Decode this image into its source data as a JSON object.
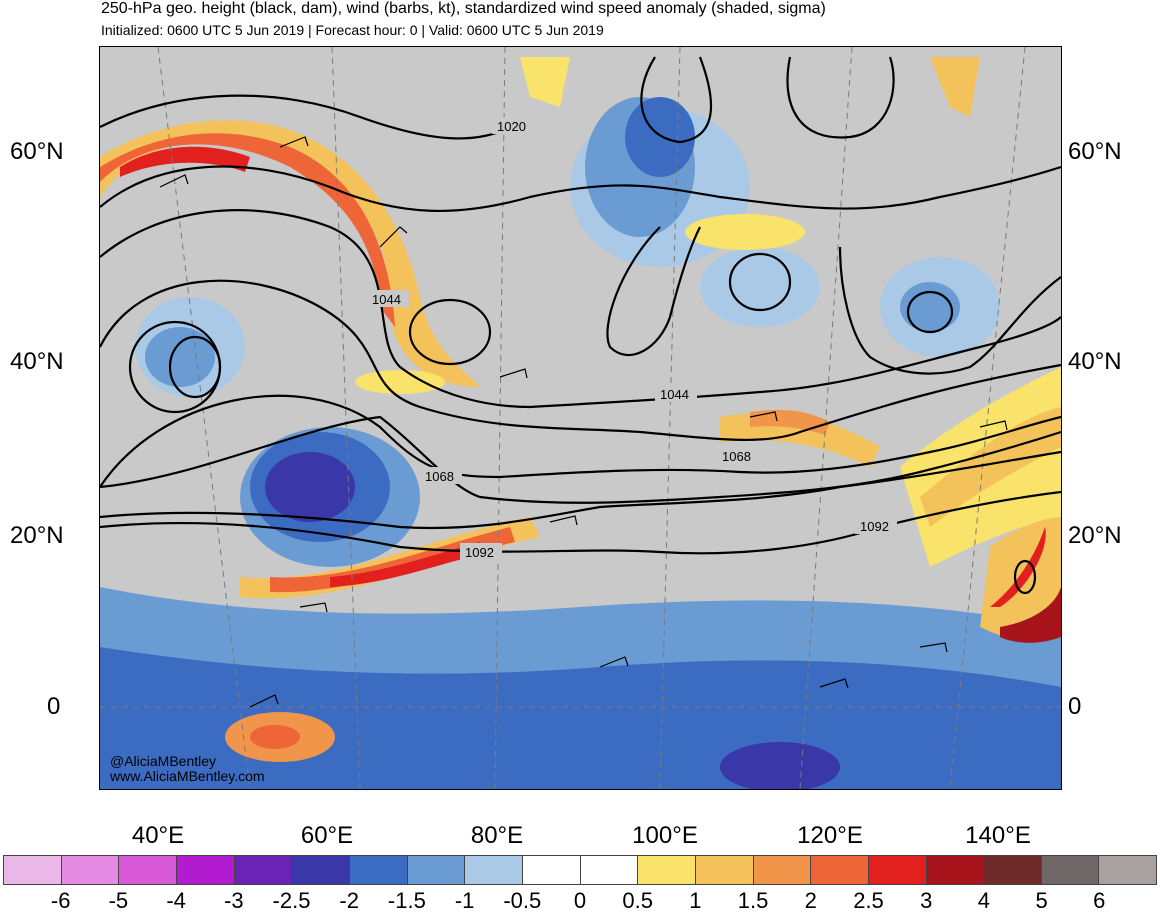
{
  "header": {
    "title": "250-hPa geo. height (black, dam), wind (barbs, kt), standardized wind speed anomaly (shaded, sigma)",
    "subtitle": "Initialized: 0600 UTC 5 Jun 2019 | Forecast hour: 0 | Valid: 0600 UTC 5 Jun 2019"
  },
  "axes": {
    "lat_left": [
      "60°N",
      "40°N",
      "20°N",
      "0"
    ],
    "lat_right": [
      "60°N",
      "40°N",
      "20°N",
      "0"
    ],
    "lon": [
      "40°E",
      "60°E",
      "80°E",
      "100°E",
      "120°E",
      "140°E"
    ]
  },
  "contour_labels": [
    "1020",
    "1044",
    "1044",
    "1068",
    "1068",
    "1092",
    "1092"
  ],
  "credit": {
    "handle": "@AliciaMBentley",
    "url": "www.AliciaMBentley.com"
  },
  "colorbar": {
    "labels": [
      "-6",
      "-5",
      "-4",
      "-3",
      "-2.5",
      "-2",
      "-1.5",
      "-1",
      "-0.5",
      "0",
      "0.5",
      "1",
      "1.5",
      "2",
      "2.5",
      "3",
      "4",
      "5",
      "6"
    ],
    "colors": [
      "#e9b8e6",
      "#e58ae3",
      "#d95ad8",
      "#b31bd0",
      "#6a23b5",
      "#3a37a8",
      "#3c6cc2",
      "#6b9bd3",
      "#a9c9e6",
      "#ffffff",
      "#ffffff",
      "#f9e36a",
      "#f4c25a",
      "#f0954a",
      "#ee6537",
      "#e2211f",
      "#a8141b",
      "#6f2a2a",
      "#706868",
      "#a9a0a0"
    ]
  }
}
